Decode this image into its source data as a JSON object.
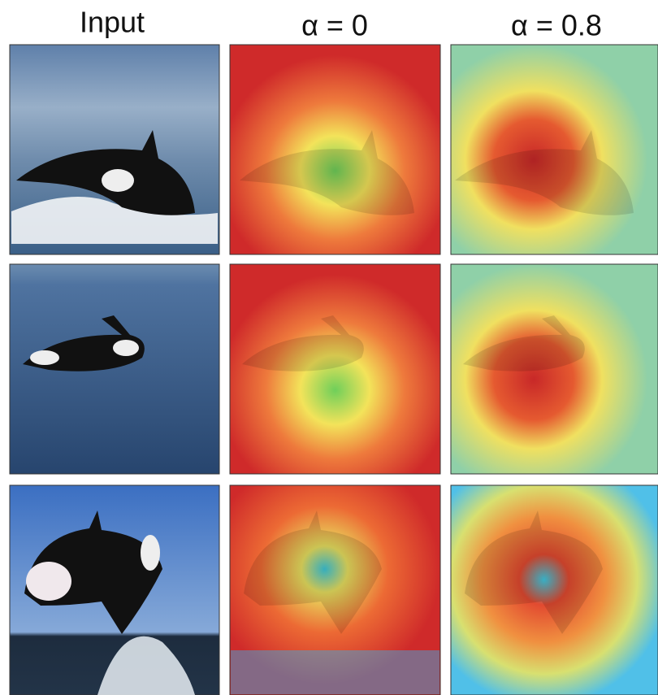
{
  "columns": [
    {
      "label": "Input"
    },
    {
      "label": "α = 0"
    },
    {
      "label": "α = 0.8"
    }
  ]
}
